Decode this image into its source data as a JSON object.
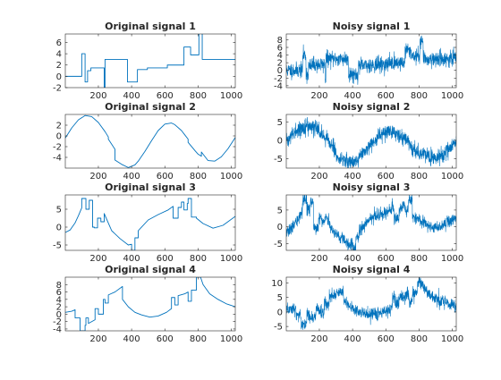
{
  "chart_data": [
    {
      "type": "line",
      "title": "Original signal 1",
      "xlim": [
        1,
        1024
      ],
      "ylim": [
        -2,
        7.5
      ],
      "xticks": [
        200,
        400,
        600,
        800,
        1000
      ],
      "yticks": [
        -2,
        0,
        2,
        4,
        6
      ],
      "color": "#0072bd",
      "series": [
        {
          "x": [
            1,
            60,
            60,
            100,
            100,
            120,
            120,
            135,
            135,
            155,
            155,
            175,
            175,
            235,
            235,
            240,
            240,
            325,
            325,
            375,
            375,
            435,
            435,
            495,
            495,
            615,
            615,
            715,
            715,
            755,
            755,
            795,
            795,
            805,
            805,
            825,
            825,
            1024
          ],
          "y": [
            0,
            0,
            0,
            0,
            4,
            4,
            -1,
            -1,
            1,
            1,
            1.5,
            1.5,
            1.5,
            1.5,
            -2,
            -2,
            3,
            3,
            3,
            3,
            -1,
            -1,
            1.2,
            1.2,
            1.5,
            1.5,
            2,
            2,
            5.2,
            5.2,
            3.8,
            3.8,
            3.8,
            3.8,
            7.8,
            7.8,
            3,
            3
          ]
        }
      ]
    },
    {
      "type": "line",
      "title": "Noisy signal 1",
      "noisy": true,
      "source": 0,
      "noise_sd": 1.0,
      "seed": 11,
      "xlim": [
        1,
        1024
      ],
      "ylim": [
        -4.5,
        9.5
      ],
      "xticks": [
        200,
        400,
        600,
        800,
        1000
      ],
      "yticks": [
        -4,
        -2,
        0,
        2,
        4,
        6,
        8
      ],
      "color": "#0072bd"
    },
    {
      "type": "line",
      "title": "Original signal 2",
      "xlim": [
        1,
        1024
      ],
      "ylim": [
        -6,
        4
      ],
      "xticks": [
        200,
        400,
        600,
        800,
        1000
      ],
      "yticks": [
        -4,
        -2,
        0,
        2
      ],
      "color": "#0072bd",
      "series": [
        {
          "x": [
            1,
            40,
            80,
            120,
            160,
            200,
            240,
            260,
            260,
            300,
            300,
            340,
            380,
            420,
            440,
            480,
            520,
            560,
            600,
            640,
            660,
            700,
            720,
            740,
            740,
            780,
            800,
            820,
            820,
            860,
            900,
            940,
            980,
            1024
          ],
          "y": [
            -0.4,
            1.5,
            3,
            3.8,
            3.6,
            2.5,
            0.8,
            -0.2,
            -0.6,
            -2.5,
            -4.5,
            -5.3,
            -5.9,
            -5.4,
            -4.7,
            -2.9,
            -0.9,
            1,
            2.2,
            2.4,
            2.1,
            1,
            0.2,
            -0.6,
            -1.2,
            -2.7,
            -3.4,
            -3.8,
            -3,
            -4.6,
            -4.7,
            -3.9,
            -2.4,
            -0.3
          ]
        }
      ]
    },
    {
      "type": "line",
      "title": "Noisy signal 2",
      "noisy": true,
      "source": 2,
      "noise_sd": 1.0,
      "seed": 22,
      "xlim": [
        1,
        1024
      ],
      "ylim": [
        -7.5,
        7
      ],
      "xticks": [
        200,
        400,
        600,
        800,
        1000
      ],
      "yticks": [
        -5,
        0,
        5
      ],
      "color": "#0072bd"
    },
    {
      "type": "line",
      "title": "Original signal 3",
      "xlim": [
        1,
        1024
      ],
      "ylim": [
        -6.5,
        9
      ],
      "xticks": [
        200,
        400,
        600,
        800,
        1000
      ],
      "yticks": [
        -5,
        0,
        5
      ],
      "color": "#0072bd",
      "series": [
        {
          "x": [
            1,
            30,
            60,
            80,
            100,
            100,
            125,
            125,
            145,
            145,
            165,
            165,
            175,
            175,
            195,
            195,
            215,
            215,
            235,
            235,
            280,
            330,
            380,
            400,
            400,
            420,
            420,
            440,
            440,
            500,
            560,
            620,
            650,
            650,
            680,
            680,
            700,
            700,
            715,
            715,
            735,
            735,
            740,
            740,
            760,
            760,
            790,
            790,
            830,
            890,
            950,
            1024
          ],
          "y": [
            -1.5,
            -0.8,
            1.2,
            3.2,
            5.4,
            8,
            8,
            5,
            5,
            7.5,
            7.5,
            0,
            0,
            -0.2,
            -0.2,
            2.5,
            2.5,
            1.5,
            1.5,
            3.8,
            -1,
            -3.2,
            -5,
            -4.8,
            -6.5,
            -6.5,
            -3,
            -3,
            -1,
            2,
            3.5,
            4.8,
            5.8,
            2.5,
            2.5,
            5.5,
            5.5,
            7,
            7,
            4.8,
            4.8,
            6.6,
            6.6,
            8,
            8,
            2.8,
            2.8,
            2.5,
            1,
            -0.3,
            0.5,
            3
          ]
        }
      ]
    },
    {
      "type": "line",
      "title": "Noisy signal 3",
      "noisy": true,
      "source": 4,
      "noise_sd": 0.9,
      "seed": 33,
      "xlim": [
        1,
        1024
      ],
      "ylim": [
        -7,
        9.5
      ],
      "xticks": [
        200,
        400,
        600,
        800,
        1000
      ],
      "yticks": [
        -5,
        0,
        5
      ],
      "color": "#0072bd"
    },
    {
      "type": "line",
      "title": "Original signal 4",
      "xlim": [
        1,
        1024
      ],
      "ylim": [
        -4.5,
        10
      ],
      "xticks": [
        200,
        400,
        600,
        800,
        1000
      ],
      "yticks": [
        -4,
        -2,
        0,
        2,
        4,
        6,
        8
      ],
      "color": "#0072bd",
      "series": [
        {
          "x": [
            1,
            40,
            60,
            60,
            90,
            90,
            120,
            120,
            125,
            125,
            140,
            140,
            180,
            180,
            200,
            200,
            230,
            230,
            240,
            240,
            260,
            260,
            300,
            345,
            345,
            380,
            420,
            460,
            510,
            560,
            610,
            640,
            640,
            660,
            660,
            680,
            680,
            720,
            740,
            740,
            760,
            760,
            790,
            790,
            815,
            830,
            870,
            920,
            970,
            1024
          ],
          "y": [
            0.5,
            0.8,
            1.2,
            -1,
            -1,
            -4.5,
            -4.5,
            -3,
            -3,
            -1,
            -1,
            -2.5,
            -1.5,
            1.5,
            1.5,
            0,
            0,
            4,
            4,
            3,
            3,
            5.2,
            6,
            7.5,
            4,
            2,
            0.5,
            -0.2,
            -0.8,
            -0.5,
            0.5,
            1.5,
            4.5,
            4.5,
            2.5,
            2.5,
            5,
            5.5,
            6,
            3.5,
            3.5,
            6.5,
            6.5,
            10,
            10,
            8,
            5.5,
            4,
            2.8,
            2
          ]
        }
      ]
    },
    {
      "type": "line",
      "title": "Noisy signal 4",
      "noisy": true,
      "source": 6,
      "noise_sd": 1.1,
      "seed": 44,
      "xlim": [
        1,
        1024
      ],
      "ylim": [
        -6.5,
        12
      ],
      "xticks": [
        200,
        400,
        600,
        800,
        1000
      ],
      "yticks": [
        -5,
        0,
        5,
        10
      ],
      "color": "#0072bd"
    }
  ]
}
